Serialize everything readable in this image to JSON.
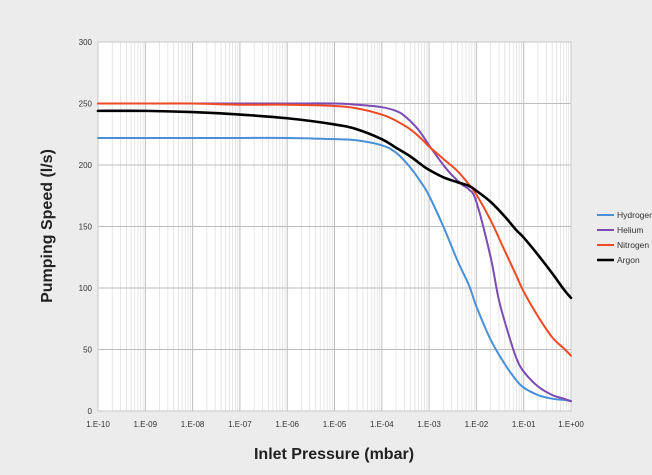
{
  "chart_data": {
    "type": "line",
    "xlabel": "Inlet Pressure (mbar)",
    "ylabel": "Pumping Speed (l/s)",
    "x_scale": "log",
    "xlim": [
      1e-10,
      1
    ],
    "ylim": [
      0,
      300
    ],
    "grid": true,
    "legend_position": "right",
    "x_ticks": [
      {
        "value": 1e-10,
        "label": "1.E-10"
      },
      {
        "value": 1e-09,
        "label": "1.E-09"
      },
      {
        "value": 1e-08,
        "label": "1.E-08"
      },
      {
        "value": 1e-07,
        "label": "1.E-07"
      },
      {
        "value": 1e-06,
        "label": "1.E-06"
      },
      {
        "value": 1e-05,
        "label": "1.E-05"
      },
      {
        "value": 0.0001,
        "label": "1.E-04"
      },
      {
        "value": 0.001,
        "label": "1.E-03"
      },
      {
        "value": 0.01,
        "label": "1.E-02"
      },
      {
        "value": 0.1,
        "label": "1.E-01"
      },
      {
        "value": 1,
        "label": "1.E+00"
      }
    ],
    "y_ticks": [
      {
        "value": 0,
        "label": "0"
      },
      {
        "value": 50,
        "label": "50"
      },
      {
        "value": 100,
        "label": "100"
      },
      {
        "value": 150,
        "label": "150"
      },
      {
        "value": 200,
        "label": "200"
      },
      {
        "value": 250,
        "label": "250"
      },
      {
        "value": 300,
        "label": "300"
      }
    ],
    "series": [
      {
        "name": "Hydrogen",
        "color": "#4a90d9",
        "x": [
          1e-10,
          1e-09,
          1e-08,
          1e-07,
          1e-06,
          1e-05,
          3e-05,
          0.0001,
          0.0002,
          0.0004,
          0.0007,
          0.001,
          0.002,
          0.004,
          0.007,
          0.01,
          0.02,
          0.04,
          0.07,
          0.1,
          0.2,
          0.4,
          0.7,
          1
        ],
        "y": [
          222,
          222,
          222,
          222,
          222,
          221,
          220,
          216,
          210,
          198,
          185,
          175,
          150,
          122,
          102,
          85,
          58,
          38,
          25,
          19,
          13,
          10,
          9,
          8
        ]
      },
      {
        "name": "Helium",
        "color": "#7b4bb3",
        "x": [
          1e-10,
          1e-09,
          1e-08,
          1e-07,
          1e-06,
          1e-05,
          3e-05,
          0.0001,
          0.0002,
          0.0003,
          0.0005,
          0.0007,
          0.001,
          0.002,
          0.003,
          0.005,
          0.007,
          0.01,
          0.02,
          0.03,
          0.05,
          0.07,
          0.1,
          0.2,
          0.4,
          0.7,
          1
        ],
        "y": [
          250,
          250,
          250,
          250,
          250,
          250,
          249,
          247,
          244,
          240,
          232,
          225,
          216,
          200,
          192,
          184,
          180,
          170,
          125,
          90,
          60,
          43,
          32,
          20,
          13,
          10,
          8
        ]
      },
      {
        "name": "Nitrogen",
        "color": "#f04a24",
        "x": [
          1e-10,
          1e-09,
          1e-08,
          1e-07,
          1e-06,
          1e-05,
          3e-05,
          0.0001,
          0.0002,
          0.0004,
          0.0007,
          0.001,
          0.002,
          0.004,
          0.007,
          0.01,
          0.02,
          0.04,
          0.07,
          0.1,
          0.2,
          0.4,
          0.7,
          1
        ],
        "y": [
          250,
          250,
          250,
          249,
          249,
          248,
          246,
          241,
          236,
          229,
          221,
          215,
          205,
          195,
          184,
          176,
          155,
          130,
          110,
          97,
          77,
          60,
          51,
          45
        ]
      },
      {
        "name": "Argon",
        "color": "#000000",
        "x": [
          1e-10,
          1e-09,
          1e-08,
          1e-07,
          1e-06,
          1e-05,
          3e-05,
          0.0001,
          0.0002,
          0.0004,
          0.0007,
          0.001,
          0.002,
          0.004,
          0.007,
          0.01,
          0.02,
          0.04,
          0.07,
          0.1,
          0.2,
          0.4,
          0.7,
          1
        ],
        "y": [
          244,
          244,
          243,
          241,
          238,
          233,
          229,
          221,
          214,
          207,
          200,
          196,
          190,
          186,
          183,
          179,
          170,
          158,
          147,
          141,
          127,
          112,
          99,
          92
        ]
      }
    ]
  }
}
